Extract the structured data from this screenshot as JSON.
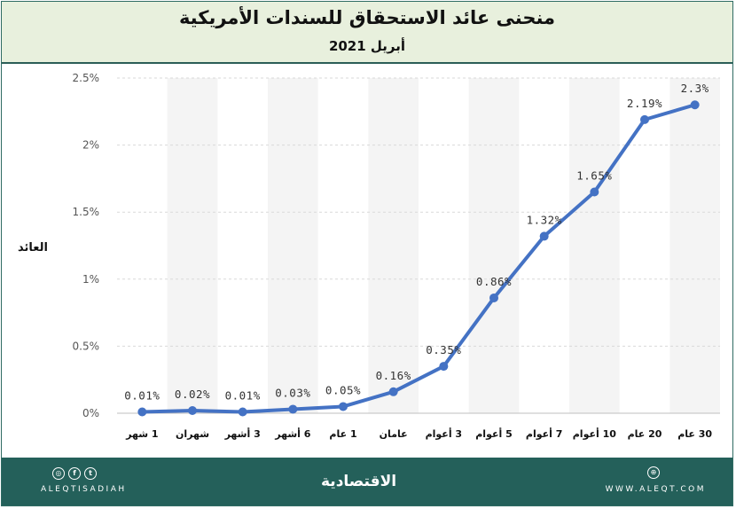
{
  "header": {
    "title": "منحنى عائد الاستحقاق للسندات الأمريكية",
    "subtitle": "أبريل 2021"
  },
  "chart_data": {
    "type": "line",
    "title": "منحنى عائد الاستحقاق للسندات الأمريكية",
    "subtitle": "أبريل 2021",
    "xlabel": "",
    "ylabel": "العائد",
    "categories": [
      "1 شهر",
      "شهران",
      "3 أشهر",
      "6 أشهر",
      "1 عام",
      "عامان",
      "3 أعوام",
      "5 أعوام",
      "7 أعوام",
      "10 أعوام",
      "20 عام",
      "30 عام"
    ],
    "series": [
      {
        "values": [
          0.01,
          0.02,
          0.01,
          0.03,
          0.05,
          0.16,
          0.35,
          0.86,
          1.32,
          1.65,
          2.19,
          2.3
        ]
      }
    ],
    "data_labels": [
      "0.01%",
      "0.02%",
      "0.01%",
      "0.03%",
      "0.05%",
      "0.16%",
      "0.35%",
      "0.86%",
      "1.32%",
      "1.65%",
      "2.19%",
      "2.3%"
    ],
    "yticks": [
      0,
      0.5,
      1,
      1.5,
      2,
      2.5
    ],
    "ytick_labels": [
      "0%",
      "0.5%",
      "1%",
      "1.5%",
      "2%",
      "2.5%"
    ],
    "ylim": [
      0,
      2.5
    ],
    "grid": true,
    "color": "#4472c4"
  },
  "footer": {
    "handle": "ALEQTISADIAH",
    "brand": "الاقتصادية",
    "site": "WWW.ALEQT.COM",
    "icons": [
      "instagram-icon",
      "facebook-icon",
      "twitter-icon",
      "globe-icon"
    ]
  }
}
